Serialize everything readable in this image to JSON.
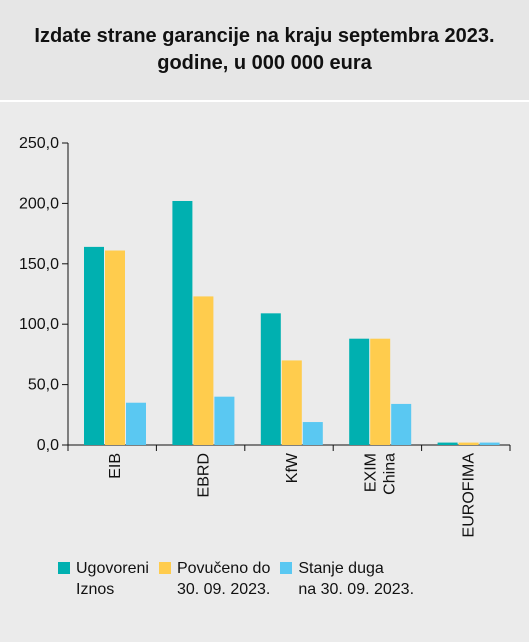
{
  "chart_data": {
    "type": "bar",
    "title": "Izdate strane garancije na kraju septembra 2023. godine, u 000 000 eura",
    "categories": [
      "EIB",
      "EBRD",
      "KfW",
      "EXIM\nChina",
      "EUROFIMA"
    ],
    "series": [
      {
        "name": "Ugovoreni\nIznos",
        "color": "#00b0b0",
        "values": [
          164,
          202,
          109,
          88,
          2
        ]
      },
      {
        "name": "Povučeno do\n30. 09. 2023.",
        "color": "#ffcc4d",
        "values": [
          161,
          123,
          70,
          88,
          2
        ]
      },
      {
        "name": "Stanje duga\nna 30. 09. 2023.",
        "color": "#5ac8f2",
        "values": [
          35,
          40,
          19,
          34,
          2
        ]
      }
    ],
    "yticks": [
      "0,0",
      "50,0",
      "100,0",
      "150,0",
      "200,0",
      "250,0"
    ],
    "ylim": [
      0,
      250
    ],
    "xlabel": "",
    "ylabel": "",
    "grid": false,
    "legend_position": "bottom"
  }
}
